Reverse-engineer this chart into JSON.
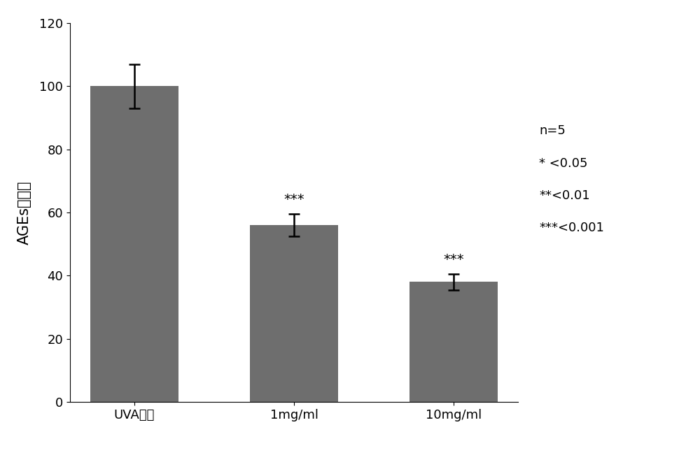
{
  "categories": [
    "UVA对照",
    "1mg/ml",
    "10mg/ml"
  ],
  "values": [
    100,
    56,
    38
  ],
  "errors": [
    7,
    3.5,
    2.5
  ],
  "bar_color": "#6e6e6e",
  "bar_width": 0.55,
  "ylabel": "AGEs生成率",
  "ylim": [
    0,
    120
  ],
  "yticks": [
    0,
    20,
    40,
    60,
    80,
    100,
    120
  ],
  "significance": [
    "",
    "***",
    "***"
  ],
  "annotation_fontsize": 14,
  "ylabel_fontsize": 15,
  "tick_fontsize": 13,
  "legend_lines": [
    "n=5",
    "* <0.05",
    "**<0.01",
    "***<0.001"
  ],
  "legend_fontsize": 13,
  "background_color": "#ffffff",
  "spine_color": "#000000"
}
